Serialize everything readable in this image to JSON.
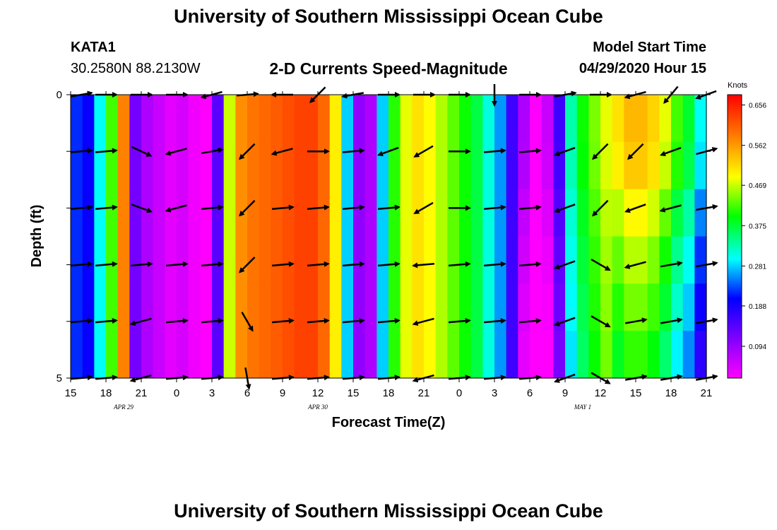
{
  "header": {
    "title": "University of Southern Mississippi Ocean Cube",
    "station": "KATA1",
    "coordinates": "30.2580N 88.2130W",
    "chart_title": "2-D Currents Speed-Magnitude",
    "model_start_label": "Model Start Time",
    "model_start_value": "04/29/2020 Hour 15"
  },
  "footer": {
    "title": "University of Southern Mississippi Ocean Cube"
  },
  "chart_data": {
    "type": "heatmap",
    "title": "2-D Currents Speed-Magnitude",
    "xlabel": "Forecast Time(Z)",
    "ylabel": "Depth (ft)",
    "colorbar_label": "Knots",
    "xlim": [
      0,
      54
    ],
    "ylim": [
      0,
      5
    ],
    "x_tick_labels": [
      "15",
      "18",
      "21",
      "0",
      "3",
      "6",
      "9",
      "12",
      "15",
      "18",
      "21",
      "0",
      "3",
      "6",
      "9",
      "12",
      "15",
      "18",
      "21"
    ],
    "y_tick_labels": [
      "0",
      "",
      "",
      "",
      "",
      "5"
    ],
    "date_labels": [
      {
        "label": "APR 29",
        "hour_index": 4.5
      },
      {
        "label": "APR 30",
        "hour_index": 21
      },
      {
        "label": "MAY 1",
        "hour_index": 43.5
      }
    ],
    "colorbar_ticks": [
      "0.656",
      "0.562",
      "0.469",
      "0.375",
      "0.281",
      "0.188",
      "0.094"
    ],
    "colorbar_tick_values": [
      0.656,
      0.562,
      0.469,
      0.375,
      0.281,
      0.188,
      0.094
    ],
    "value_range": [
      0.02,
      0.68
    ],
    "columns": [
      0.22,
      0.2,
      0.3,
      0.42,
      0.58,
      0.12,
      0.08,
      0.06,
      0.04,
      0.05,
      0.03,
      0.02,
      0.14,
      0.47,
      0.57,
      0.59,
      0.6,
      0.61,
      0.62,
      0.63,
      0.63,
      0.6,
      0.5,
      0.28,
      0.1,
      0.08,
      0.28,
      0.41,
      0.48,
      0.51,
      0.49,
      0.46,
      0.43,
      0.4,
      0.37,
      0.31,
      0.26,
      0.16,
      0.08,
      0.02,
      0.06,
      0.16,
      0.33,
      0.4,
      0.44,
      0.48,
      0.51,
      0.54,
      0.54,
      0.52,
      0.48,
      0.42,
      0.38,
      0.3
    ],
    "depth_blue_factor": [
      0.0,
      0.02,
      0.08,
      0.13,
      0.17,
      0.21
    ],
    "arrow_hours": [
      0,
      3,
      6,
      9,
      12,
      15,
      18,
      21,
      24,
      27,
      30,
      33,
      36,
      39,
      42,
      45,
      48,
      51,
      54
    ],
    "arrow_depth_rows": [
      0,
      1,
      2,
      3,
      4,
      5
    ],
    "arrow_angles_deg": [
      [
        10,
        0,
        0,
        0,
        195,
        5,
        180,
        225,
        190,
        0,
        0,
        0,
        270,
        0,
        10,
        0,
        195,
        230,
        200
      ],
      [
        5,
        5,
        -25,
        195,
        10,
        225,
        195,
        0,
        5,
        200,
        210,
        0,
        5,
        5,
        200,
        225,
        225,
        200,
        15
      ],
      [
        5,
        5,
        -20,
        195,
        5,
        225,
        5,
        5,
        5,
        5,
        210,
        0,
        5,
        5,
        200,
        225,
        200,
        195,
        10
      ],
      [
        5,
        5,
        5,
        5,
        5,
        225,
        5,
        5,
        5,
        5,
        185,
        5,
        5,
        5,
        200,
        -30,
        195,
        10,
        10
      ],
      [
        5,
        5,
        195,
        5,
        5,
        -60,
        5,
        5,
        5,
        5,
        195,
        5,
        5,
        5,
        200,
        -30,
        10,
        10,
        10
      ],
      [
        5,
        5,
        195,
        5,
        5,
        -80,
        5,
        5,
        5,
        5,
        195,
        5,
        5,
        5,
        200,
        -30,
        10,
        10,
        10
      ]
    ]
  }
}
